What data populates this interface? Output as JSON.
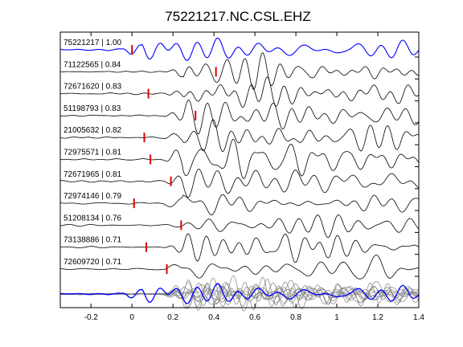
{
  "chart_data": {
    "type": "line",
    "title": "75221217.NC.CSL.EHZ",
    "xlabel": "",
    "ylabel": "",
    "xlim": [
      -0.35,
      1.4
    ],
    "xticks": [
      -0.2,
      0,
      0.2,
      0.4,
      0.6,
      0.8,
      1,
      1.2,
      1.4
    ],
    "xtick_labels": [
      "-0.2",
      "0",
      "0.2",
      "0.4",
      "0.6",
      "0.8",
      "1",
      "1.2",
      "1.4"
    ],
    "grid": false,
    "colors": {
      "reference_trace": "#0000ff",
      "trace": "#000000",
      "pick_marker": "#dd0000",
      "stack_trace": "#808080"
    },
    "series": [
      {
        "name": "75221217 | 1.00",
        "pick": 0.0,
        "reference": true
      },
      {
        "name": "71122565 | 0.84",
        "pick": 0.41
      },
      {
        "name": "72671620 | 0.83",
        "pick": 0.08
      },
      {
        "name": "51198793 | 0.83",
        "pick": 0.31
      },
      {
        "name": "21005632 | 0.82",
        "pick": 0.06
      },
      {
        "name": "72975571 | 0.81",
        "pick": 0.09
      },
      {
        "name": "72671965 | 0.81",
        "pick": 0.19
      },
      {
        "name": "72974146 | 0.79",
        "pick": 0.01
      },
      {
        "name": "51208134 | 0.76",
        "pick": 0.24
      },
      {
        "name": "73138886 | 0.71",
        "pick": 0.07
      },
      {
        "name": "72609720 | 0.71",
        "pick": 0.17
      }
    ],
    "stack_panel": true
  }
}
